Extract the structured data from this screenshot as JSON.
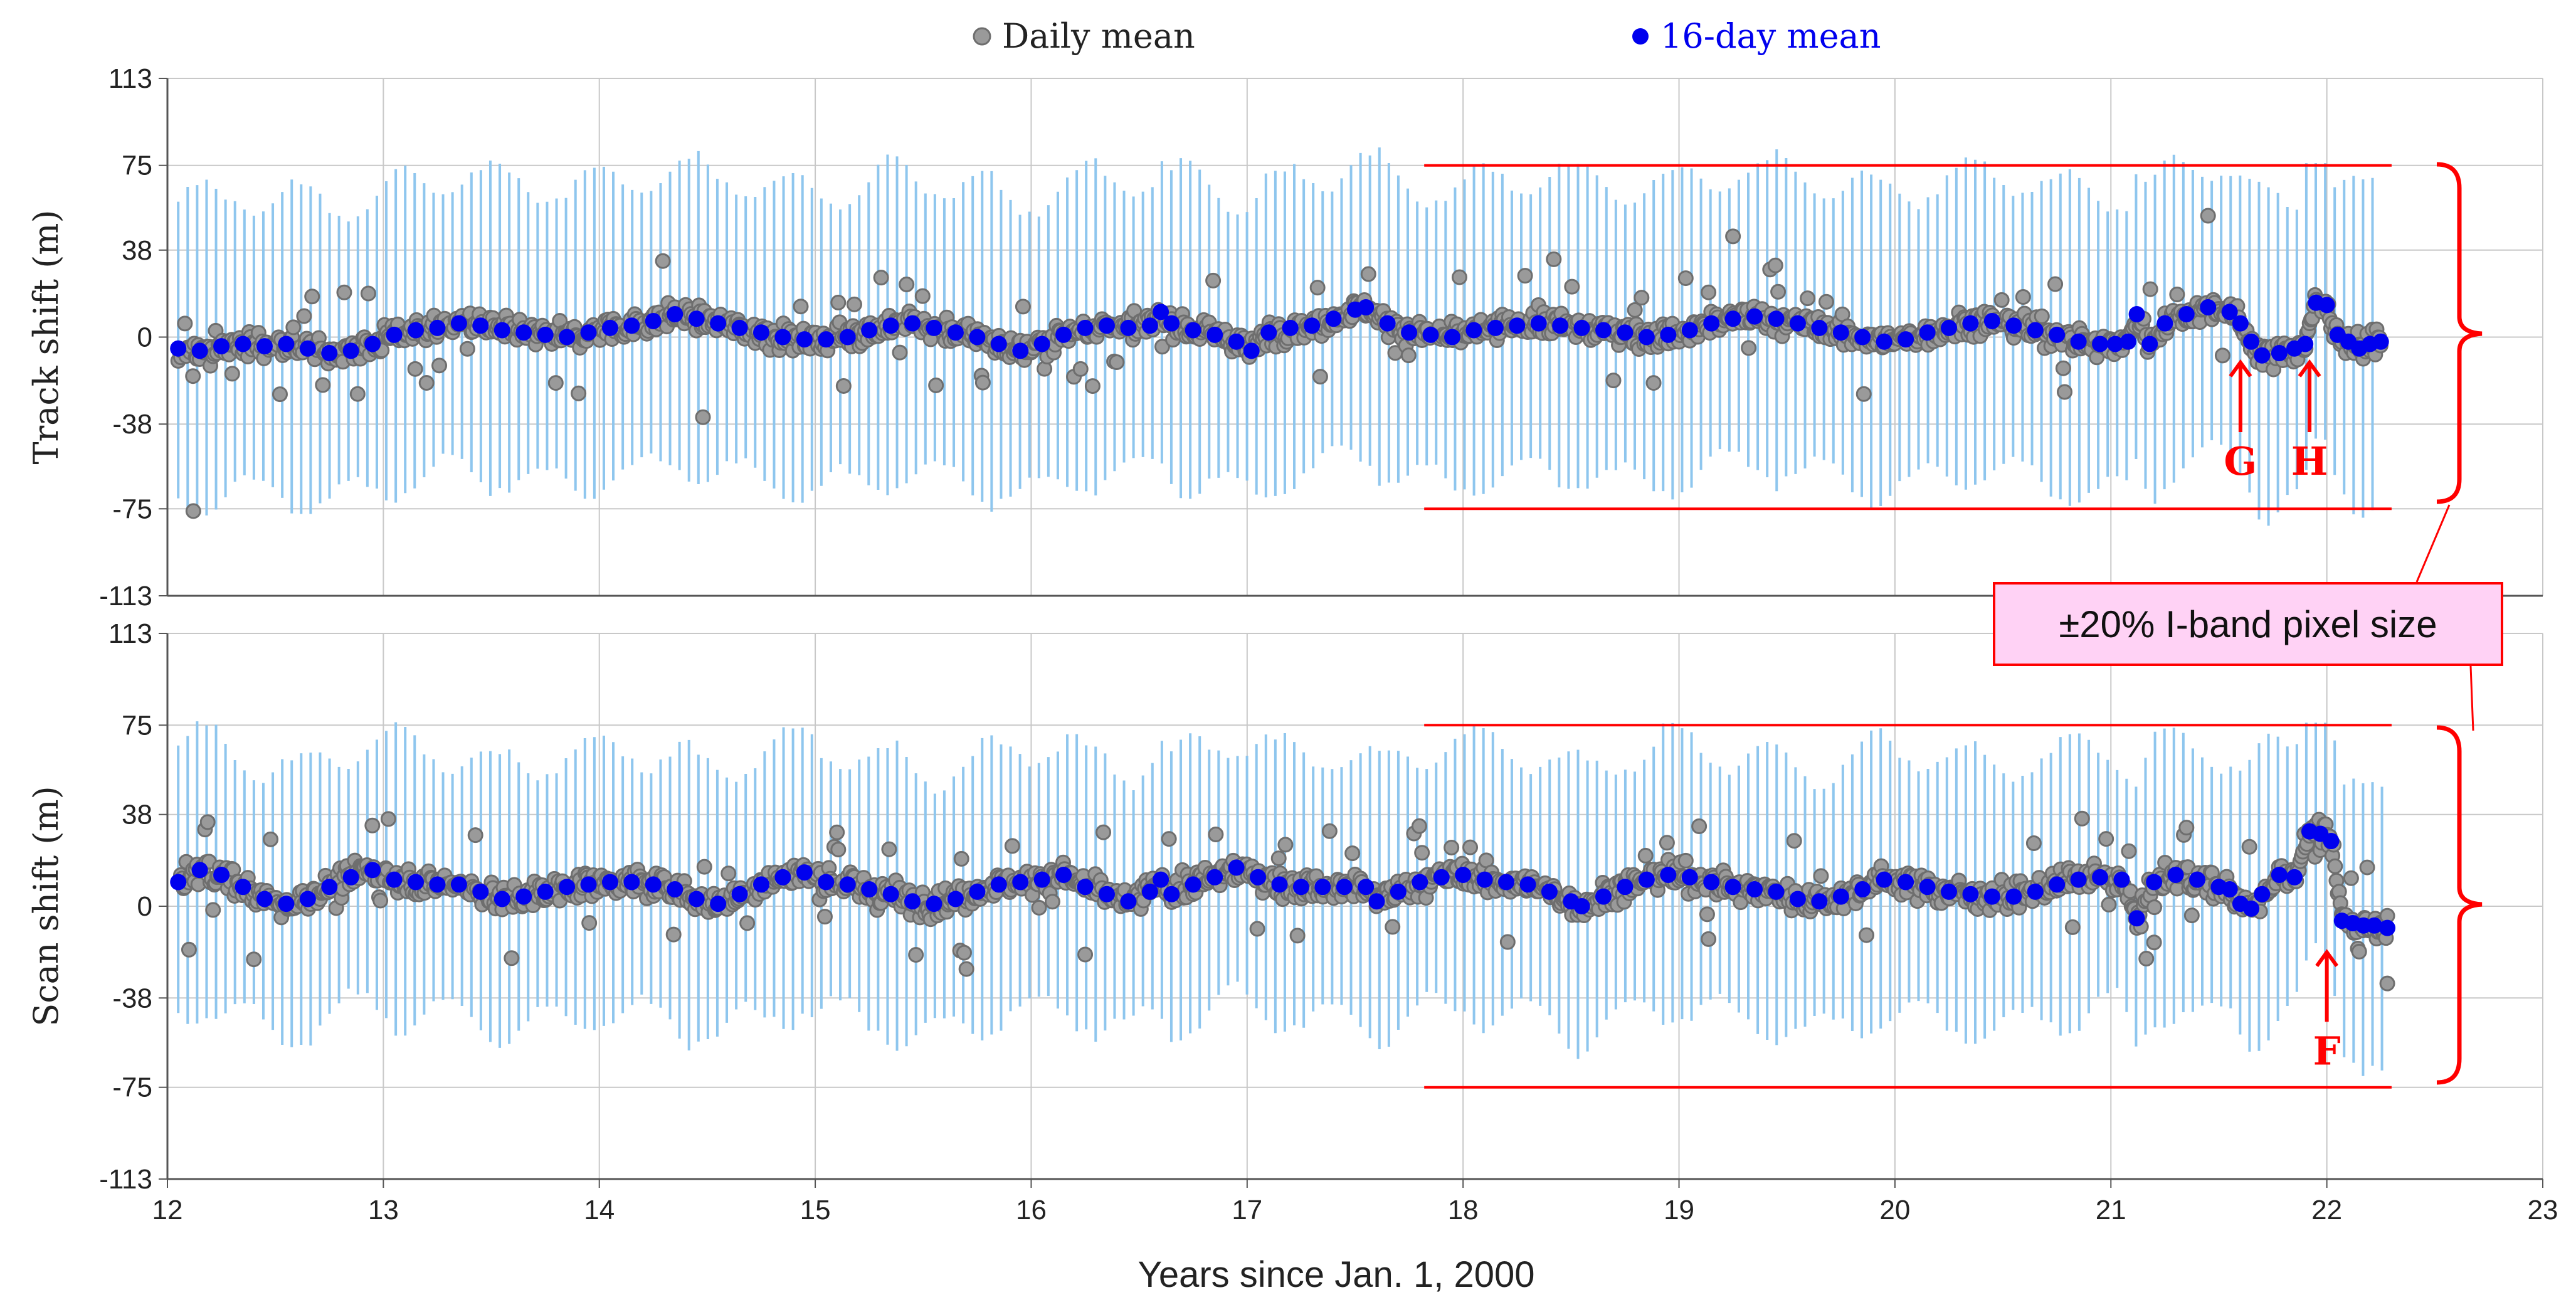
{
  "colors": {
    "daily_mean": "#9a9a9a",
    "daily_mean_edge": "#6e6e6e",
    "sixteen_day_mean": "#0000ee",
    "error_bar": "#8ec6ee",
    "annotation": "#ff0000",
    "callout_fill": "#ffd2f5",
    "grid": "#c8c8c8"
  },
  "chart_data": {
    "type": "scatter",
    "legend": [
      {
        "name": "Daily mean",
        "marker": "gray-circle"
      },
      {
        "name": "16-day mean",
        "marker": "blue-circle"
      }
    ],
    "x_axis": {
      "label": "Years since Jan. 1, 2000",
      "range": [
        12,
        23
      ],
      "ticks": [
        "12",
        "13",
        "14",
        "15",
        "16",
        "17",
        "18",
        "19",
        "20",
        "21",
        "22",
        "23"
      ]
    },
    "callout": "±20% I-band pixel size",
    "panels": [
      {
        "id": "track",
        "ylabel": "Track shift (m)",
        "ylim": [
          -113,
          113
        ],
        "yticks": [
          "113",
          "75",
          "38",
          "0",
          "-38",
          "-75",
          "-113"
        ],
        "threshold_lines": [
          75,
          -75
        ],
        "threshold_x_range": [
          17.82,
          22.3
        ],
        "daily_mean_range": [
          -78,
          48
        ],
        "error_bar_halfwidth_range": [
          55,
          72
        ],
        "sixteen_day_mean_points": [
          [
            12.05,
            -5
          ],
          [
            12.15,
            -6
          ],
          [
            12.25,
            -4
          ],
          [
            12.35,
            -3
          ],
          [
            12.45,
            -4
          ],
          [
            12.55,
            -3
          ],
          [
            12.65,
            -5
          ],
          [
            12.75,
            -7
          ],
          [
            12.85,
            -6
          ],
          [
            12.95,
            -3
          ],
          [
            13.05,
            1
          ],
          [
            13.15,
            3
          ],
          [
            13.25,
            4
          ],
          [
            13.35,
            6
          ],
          [
            13.45,
            5
          ],
          [
            13.55,
            3
          ],
          [
            13.65,
            2
          ],
          [
            13.75,
            1
          ],
          [
            13.85,
            0
          ],
          [
            13.95,
            2
          ],
          [
            14.05,
            4
          ],
          [
            14.15,
            5
          ],
          [
            14.25,
            7
          ],
          [
            14.35,
            10
          ],
          [
            14.45,
            8
          ],
          [
            14.55,
            6
          ],
          [
            14.65,
            4
          ],
          [
            14.75,
            2
          ],
          [
            14.85,
            0
          ],
          [
            14.95,
            -1
          ],
          [
            15.05,
            -1
          ],
          [
            15.15,
            0
          ],
          [
            15.25,
            3
          ],
          [
            15.35,
            5
          ],
          [
            15.45,
            6
          ],
          [
            15.55,
            4
          ],
          [
            15.65,
            2
          ],
          [
            15.75,
            0
          ],
          [
            15.85,
            -3
          ],
          [
            15.95,
            -6
          ],
          [
            16.05,
            -3
          ],
          [
            16.15,
            1
          ],
          [
            16.25,
            4
          ],
          [
            16.35,
            5
          ],
          [
            16.45,
            4
          ],
          [
            16.55,
            5
          ],
          [
            16.6,
            11
          ],
          [
            16.65,
            6
          ],
          [
            16.75,
            3
          ],
          [
            16.85,
            1
          ],
          [
            16.95,
            -2
          ],
          [
            17.02,
            -6
          ],
          [
            17.1,
            2
          ],
          [
            17.2,
            4
          ],
          [
            17.3,
            5
          ],
          [
            17.4,
            8
          ],
          [
            17.5,
            12
          ],
          [
            17.55,
            13
          ],
          [
            17.65,
            6
          ],
          [
            17.75,
            2
          ],
          [
            17.85,
            1
          ],
          [
            17.95,
            0
          ],
          [
            18.05,
            3
          ],
          [
            18.15,
            4
          ],
          [
            18.25,
            5
          ],
          [
            18.35,
            6
          ],
          [
            18.45,
            5
          ],
          [
            18.55,
            4
          ],
          [
            18.65,
            3
          ],
          [
            18.75,
            2
          ],
          [
            18.85,
            0
          ],
          [
            18.95,
            1
          ],
          [
            19.05,
            3
          ],
          [
            19.15,
            6
          ],
          [
            19.25,
            8
          ],
          [
            19.35,
            9
          ],
          [
            19.45,
            8
          ],
          [
            19.55,
            6
          ],
          [
            19.65,
            4
          ],
          [
            19.75,
            2
          ],
          [
            19.85,
            0
          ],
          [
            19.95,
            -2
          ],
          [
            20.05,
            -1
          ],
          [
            20.15,
            2
          ],
          [
            20.25,
            4
          ],
          [
            20.35,
            6
          ],
          [
            20.45,
            7
          ],
          [
            20.55,
            5
          ],
          [
            20.65,
            3
          ],
          [
            20.75,
            1
          ],
          [
            20.85,
            -2
          ],
          [
            20.95,
            -3
          ],
          [
            21.02,
            -3
          ],
          [
            21.08,
            -2
          ],
          [
            21.12,
            10
          ],
          [
            21.18,
            -3
          ],
          [
            21.25,
            6
          ],
          [
            21.35,
            10
          ],
          [
            21.45,
            13
          ],
          [
            21.55,
            11
          ],
          [
            21.6,
            6
          ],
          [
            21.65,
            -2
          ],
          [
            21.7,
            -8
          ],
          [
            21.78,
            -7
          ],
          [
            21.85,
            -5
          ],
          [
            21.9,
            -3
          ],
          [
            21.95,
            15
          ],
          [
            22.0,
            14
          ],
          [
            22.05,
            1
          ],
          [
            22.1,
            -2
          ],
          [
            22.15,
            -5
          ],
          [
            22.2,
            -3
          ],
          [
            22.25,
            -2
          ]
        ],
        "markers": [
          {
            "label": "G",
            "x": 21.6,
            "y": -10
          },
          {
            "label": "H",
            "x": 21.92,
            "y": -10
          }
        ]
      },
      {
        "id": "scan",
        "ylabel": "Scan shift (m)",
        "ylim": [
          -113,
          113
        ],
        "yticks": [
          "113",
          "75",
          "38",
          "0",
          "-38",
          "-75",
          "-113"
        ],
        "threshold_lines": [
          75,
          -75
        ],
        "threshold_x_range": [
          17.82,
          22.3
        ],
        "daily_mean_range": [
          -38,
          40
        ],
        "error_bar_halfwidth_range": [
          45,
          62
        ],
        "sixteen_day_mean_points": [
          [
            12.05,
            10
          ],
          [
            12.15,
            15
          ],
          [
            12.25,
            13
          ],
          [
            12.35,
            8
          ],
          [
            12.45,
            3
          ],
          [
            12.55,
            1
          ],
          [
            12.65,
            3
          ],
          [
            12.75,
            8
          ],
          [
            12.85,
            12
          ],
          [
            12.95,
            15
          ],
          [
            13.05,
            11
          ],
          [
            13.15,
            10
          ],
          [
            13.25,
            9
          ],
          [
            13.35,
            9
          ],
          [
            13.45,
            6
          ],
          [
            13.55,
            3
          ],
          [
            13.65,
            4
          ],
          [
            13.75,
            6
          ],
          [
            13.85,
            8
          ],
          [
            13.95,
            9
          ],
          [
            14.05,
            10
          ],
          [
            14.15,
            10
          ],
          [
            14.25,
            9
          ],
          [
            14.35,
            7
          ],
          [
            14.45,
            3
          ],
          [
            14.55,
            1
          ],
          [
            14.65,
            5
          ],
          [
            14.75,
            9
          ],
          [
            14.85,
            12
          ],
          [
            14.95,
            14
          ],
          [
            15.05,
            10
          ],
          [
            15.15,
            9
          ],
          [
            15.25,
            7
          ],
          [
            15.35,
            5
          ],
          [
            15.45,
            2
          ],
          [
            15.55,
            1
          ],
          [
            15.65,
            3
          ],
          [
            15.75,
            6
          ],
          [
            15.85,
            9
          ],
          [
            15.95,
            10
          ],
          [
            16.05,
            11
          ],
          [
            16.15,
            13
          ],
          [
            16.25,
            8
          ],
          [
            16.35,
            5
          ],
          [
            16.45,
            2
          ],
          [
            16.55,
            6
          ],
          [
            16.6,
            11
          ],
          [
            16.65,
            5
          ],
          [
            16.75,
            9
          ],
          [
            16.85,
            12
          ],
          [
            16.95,
            16
          ],
          [
            17.05,
            12
          ],
          [
            17.15,
            9
          ],
          [
            17.25,
            8
          ],
          [
            17.35,
            8
          ],
          [
            17.45,
            8
          ],
          [
            17.55,
            8
          ],
          [
            17.6,
            2
          ],
          [
            17.7,
            6
          ],
          [
            17.8,
            10
          ],
          [
            17.9,
            12
          ],
          [
            18.0,
            13
          ],
          [
            18.1,
            11
          ],
          [
            18.2,
            10
          ],
          [
            18.3,
            9
          ],
          [
            18.4,
            6
          ],
          [
            18.5,
            2
          ],
          [
            18.55,
            0
          ],
          [
            18.65,
            4
          ],
          [
            18.75,
            8
          ],
          [
            18.85,
            11
          ],
          [
            18.95,
            13
          ],
          [
            19.05,
            12
          ],
          [
            19.15,
            10
          ],
          [
            19.25,
            8
          ],
          [
            19.35,
            7
          ],
          [
            19.45,
            6
          ],
          [
            19.55,
            3
          ],
          [
            19.65,
            2
          ],
          [
            19.75,
            4
          ],
          [
            19.85,
            7
          ],
          [
            19.95,
            11
          ],
          [
            20.05,
            10
          ],
          [
            20.15,
            8
          ],
          [
            20.25,
            6
          ],
          [
            20.35,
            5
          ],
          [
            20.45,
            4
          ],
          [
            20.55,
            4
          ],
          [
            20.65,
            6
          ],
          [
            20.75,
            9
          ],
          [
            20.85,
            11
          ],
          [
            20.95,
            12
          ],
          [
            21.05,
            11
          ],
          [
            21.12,
            -5
          ],
          [
            21.2,
            10
          ],
          [
            21.3,
            13
          ],
          [
            21.4,
            11
          ],
          [
            21.5,
            8
          ],
          [
            21.55,
            7
          ],
          [
            21.6,
            1
          ],
          [
            21.65,
            -1
          ],
          [
            21.7,
            5
          ],
          [
            21.78,
            13
          ],
          [
            21.85,
            12
          ],
          [
            21.92,
            31
          ],
          [
            21.97,
            30
          ],
          [
            22.02,
            27
          ],
          [
            22.07,
            -6
          ],
          [
            22.12,
            -7
          ],
          [
            22.17,
            -8
          ],
          [
            22.22,
            -8
          ],
          [
            22.28,
            -9
          ]
        ],
        "markers": [
          {
            "label": "F",
            "x": 22.0,
            "y": -18
          }
        ]
      }
    ]
  }
}
